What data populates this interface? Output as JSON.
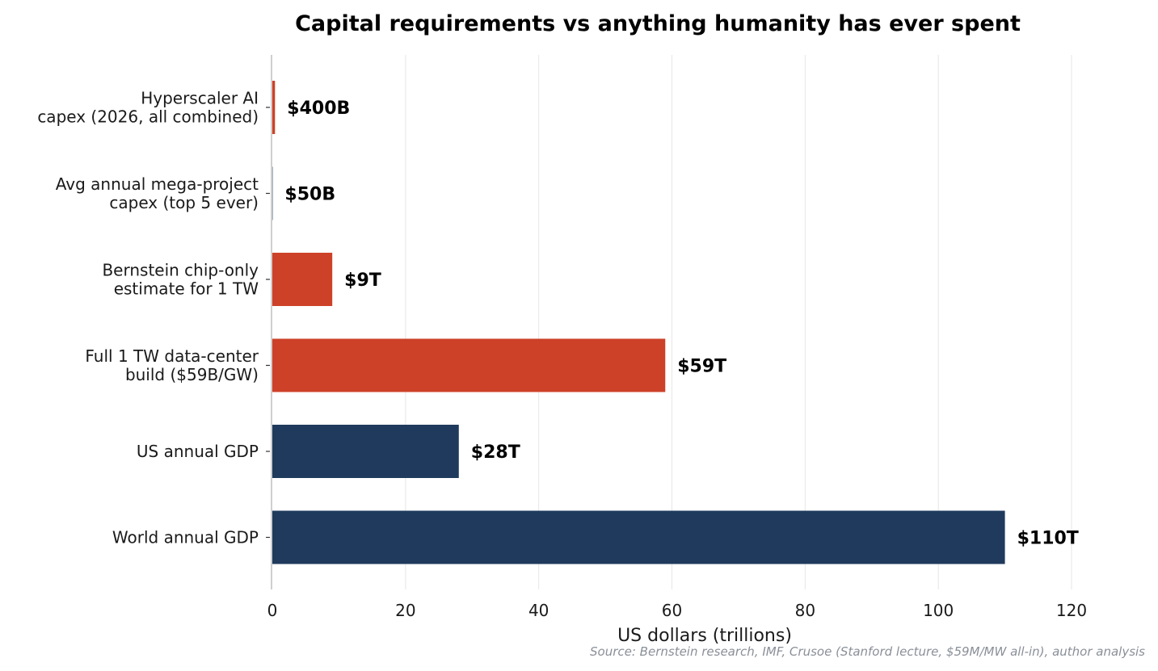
{
  "chart_data": {
    "type": "bar",
    "orientation": "horizontal",
    "title": "Capital requirements vs anything humanity has ever spent",
    "xlabel": "US dollars (trillions)",
    "ylabel": "",
    "xlim": [
      0,
      120
    ],
    "xticks": [
      0,
      20,
      40,
      60,
      80,
      100,
      120
    ],
    "grid": "vertical",
    "source": "Source: Bernstein research, IMF, Crusoe (Stanford lecture, $59M/MW all-in), author analysis",
    "bars": [
      {
        "label_lines": [
          "Hyperscaler AI",
          "capex (2026, all combined)"
        ],
        "value": 0.4,
        "value_label": "$400B",
        "color": "#cc4128"
      },
      {
        "label_lines": [
          "Avg annual mega-project",
          "capex (top 5 ever)"
        ],
        "value": 0.05,
        "value_label": "$50B",
        "color": "#1f3a5c"
      },
      {
        "label_lines": [
          "Bernstein chip-only",
          "estimate for 1 TW"
        ],
        "value": 9,
        "value_label": "$9T",
        "color": "#cc4128"
      },
      {
        "label_lines": [
          "Full 1 TW data-center",
          "build ($59B/GW)"
        ],
        "value": 59,
        "value_label": "$59T",
        "color": "#cc4128"
      },
      {
        "label_lines": [
          "US annual GDP"
        ],
        "value": 28,
        "value_label": "$28T",
        "color": "#1f3a5c"
      },
      {
        "label_lines": [
          "World annual GDP"
        ],
        "value": 110,
        "value_label": "$110T",
        "color": "#1f3a5c"
      }
    ]
  }
}
